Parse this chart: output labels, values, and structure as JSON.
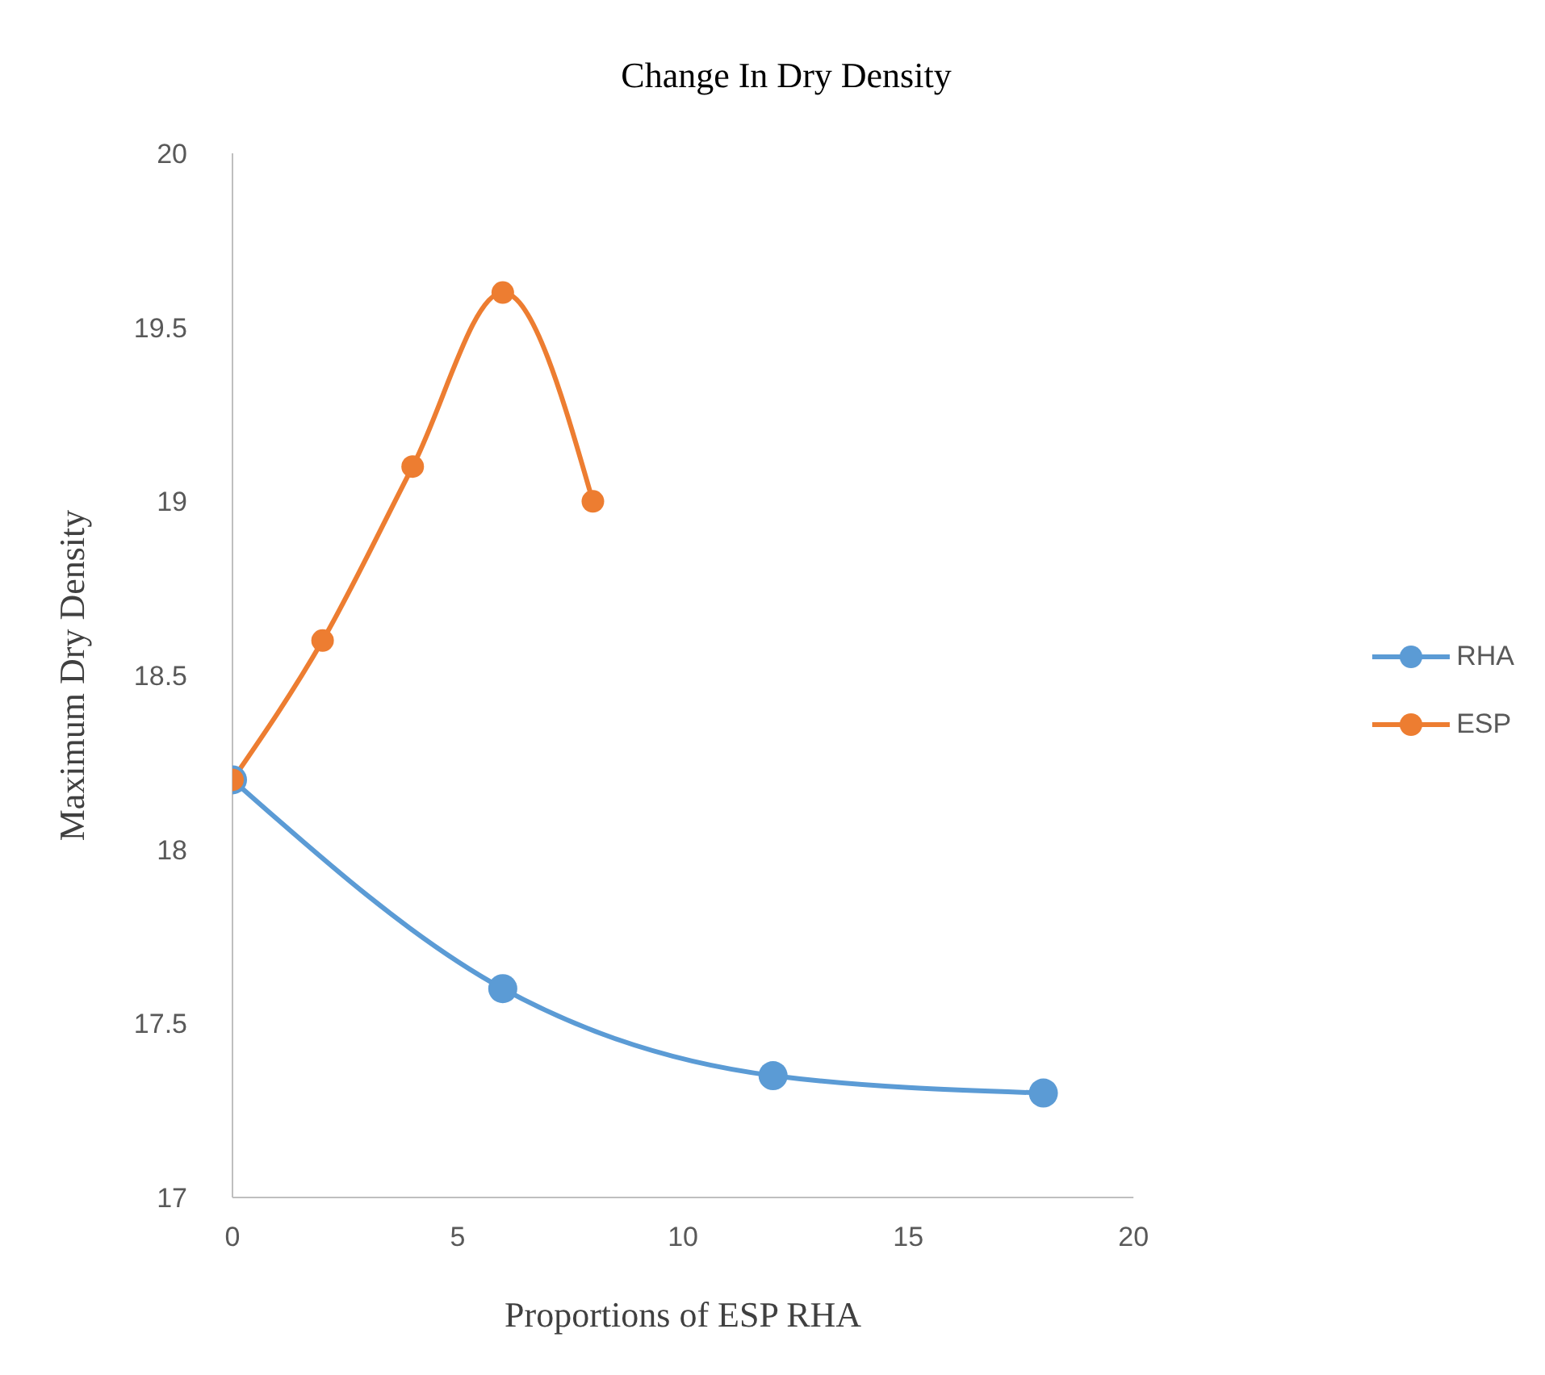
{
  "chart_data": {
    "type": "line",
    "title": "Change In Dry Density",
    "xlabel": "Proportions of ESP RHA",
    "ylabel": "Maximum Dry Density",
    "series": [
      {
        "name": "RHA",
        "color": "#5b9bd5",
        "x": [
          0,
          6,
          12,
          18
        ],
        "values": [
          18.2,
          17.6,
          17.35,
          17.3
        ]
      },
      {
        "name": "ESP",
        "color": "#ed7d31",
        "x": [
          0,
          2,
          4,
          6,
          8
        ],
        "values": [
          18.2,
          18.6,
          19.1,
          19.6,
          19.0
        ]
      }
    ],
    "xlim": [
      0,
      20
    ],
    "xticks": [
      0,
      5,
      10,
      15,
      20
    ],
    "ylim": [
      17,
      20
    ],
    "yticks": [
      17,
      17.5,
      18,
      18.5,
      19,
      19.5,
      20
    ],
    "grid": false,
    "legend": "right",
    "marker": "circle",
    "line_style": "solid"
  }
}
